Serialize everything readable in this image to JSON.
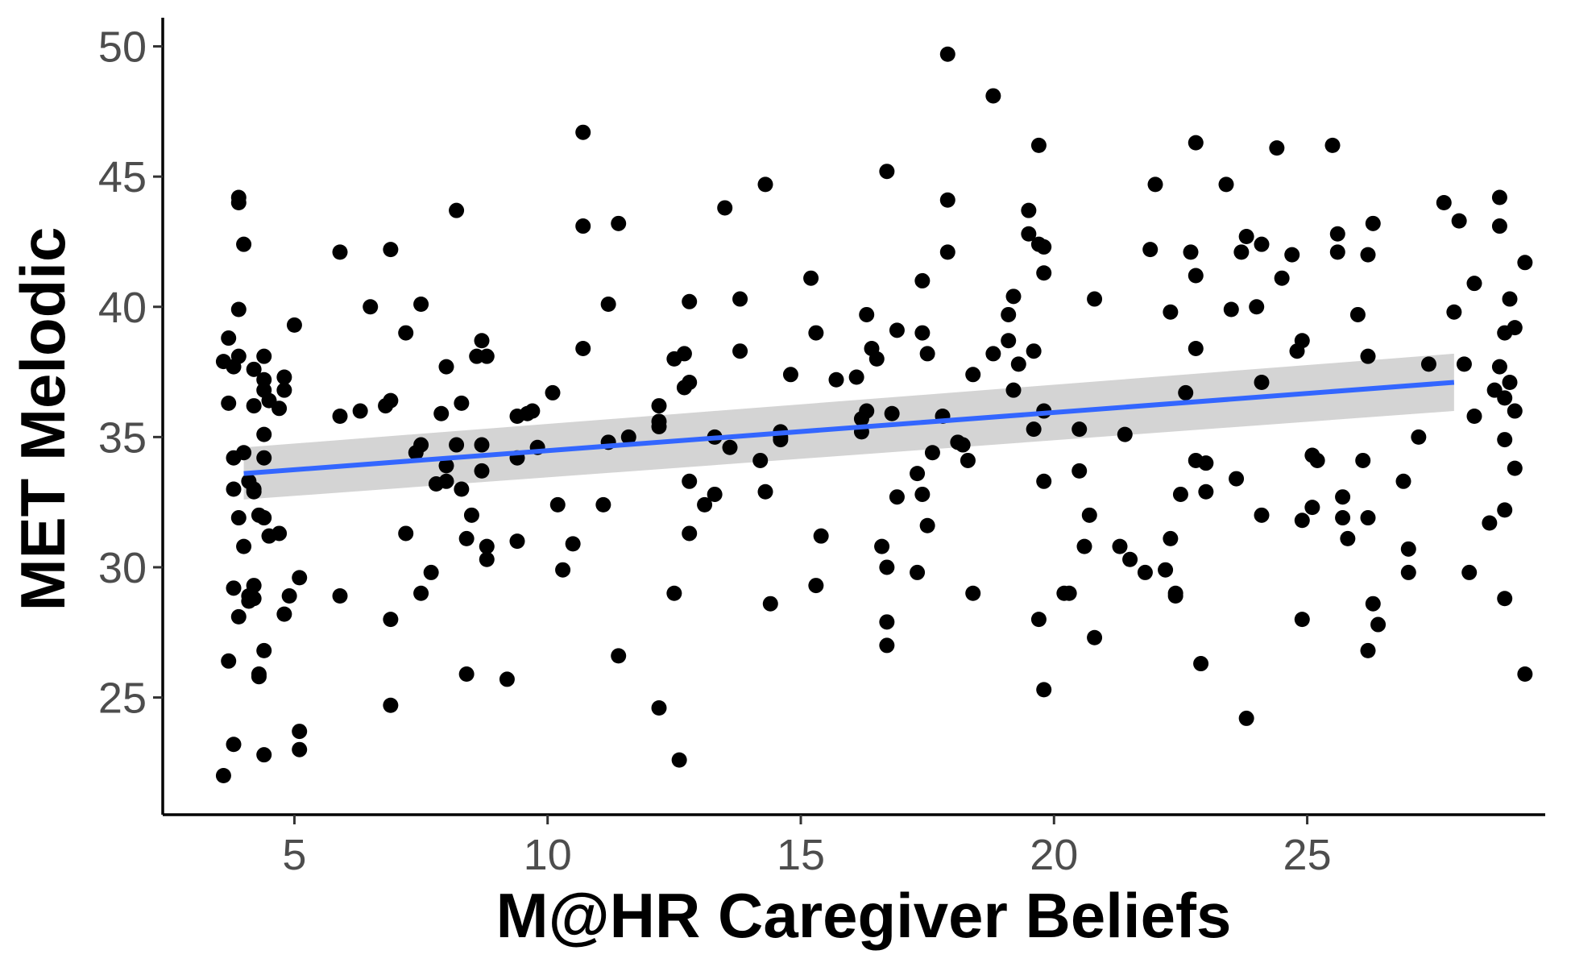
{
  "chart_data": {
    "type": "scatter",
    "title": "",
    "xlabel": "M@HR Caregiver Beliefs",
    "ylabel": "MET Melodic",
    "xlim": [
      2.4,
      29.7
    ],
    "ylim": [
      20.5,
      51.1
    ],
    "x_ticks": [
      5,
      10,
      15,
      20,
      25
    ],
    "y_ticks": [
      25,
      30,
      35,
      40,
      45,
      50
    ],
    "grid": false,
    "legend": "none",
    "colors": {
      "points": "#000000",
      "fit_line": "#3366FF",
      "ci_band": "#CCCCCC",
      "axis": "#000000",
      "tick_text": "#4D4D4D"
    },
    "fit": {
      "x_start": 4.0,
      "x_end": 27.9,
      "y_start": 33.6,
      "y_end": 37.1,
      "ci_start": [
        32.6,
        34.6
      ],
      "ci_end": [
        36.0,
        38.2
      ]
    },
    "points": [
      [
        3.6,
        22.0
      ],
      [
        3.6,
        37.9
      ],
      [
        3.7,
        38.8
      ],
      [
        3.7,
        36.3
      ],
      [
        3.7,
        26.4
      ],
      [
        3.8,
        29.2
      ],
      [
        3.8,
        33.0
      ],
      [
        3.8,
        34.2
      ],
      [
        3.8,
        37.7
      ],
      [
        3.8,
        23.2
      ],
      [
        3.9,
        39.9
      ],
      [
        3.9,
        38.1
      ],
      [
        3.9,
        44.0
      ],
      [
        3.9,
        44.2
      ],
      [
        3.9,
        31.9
      ],
      [
        3.9,
        28.1
      ],
      [
        4.0,
        34.4
      ],
      [
        4.0,
        30.8
      ],
      [
        4.0,
        42.4
      ],
      [
        4.1,
        33.3
      ],
      [
        4.1,
        28.9
      ],
      [
        4.1,
        28.7
      ],
      [
        4.2,
        37.6
      ],
      [
        4.2,
        36.2
      ],
      [
        4.2,
        33.0
      ],
      [
        4.2,
        32.9
      ],
      [
        4.2,
        29.3
      ],
      [
        4.2,
        28.8
      ],
      [
        4.3,
        32.0
      ],
      [
        4.3,
        25.9
      ],
      [
        4.3,
        25.8
      ],
      [
        4.4,
        37.2
      ],
      [
        4.4,
        36.8
      ],
      [
        4.4,
        34.2
      ],
      [
        4.4,
        31.9
      ],
      [
        4.4,
        38.1
      ],
      [
        4.4,
        35.1
      ],
      [
        4.4,
        26.8
      ],
      [
        4.4,
        22.8
      ],
      [
        4.5,
        36.4
      ],
      [
        4.5,
        31.2
      ],
      [
        4.7,
        36.1
      ],
      [
        4.7,
        31.3
      ],
      [
        4.8,
        37.3
      ],
      [
        4.8,
        36.8
      ],
      [
        4.8,
        28.2
      ],
      [
        4.9,
        28.9
      ],
      [
        5.0,
        39.3
      ],
      [
        5.1,
        29.6
      ],
      [
        5.1,
        23.7
      ],
      [
        5.1,
        23.0
      ],
      [
        5.9,
        42.1
      ],
      [
        5.9,
        35.8
      ],
      [
        5.9,
        28.9
      ],
      [
        6.3,
        36.0
      ],
      [
        6.5,
        40.0
      ],
      [
        6.8,
        36.2
      ],
      [
        6.9,
        36.4
      ],
      [
        6.9,
        42.2
      ],
      [
        6.9,
        28.0
      ],
      [
        6.9,
        24.7
      ],
      [
        7.2,
        39.0
      ],
      [
        7.2,
        31.3
      ],
      [
        7.4,
        34.4
      ],
      [
        7.5,
        40.1
      ],
      [
        7.5,
        34.7
      ],
      [
        7.5,
        29.0
      ],
      [
        7.7,
        29.8
      ],
      [
        7.8,
        33.2
      ],
      [
        7.9,
        35.9
      ],
      [
        8.0,
        33.9
      ],
      [
        8.0,
        33.3
      ],
      [
        8.0,
        37.7
      ],
      [
        8.2,
        34.7
      ],
      [
        8.2,
        43.7
      ],
      [
        8.3,
        33.0
      ],
      [
        8.3,
        36.3
      ],
      [
        8.4,
        31.1
      ],
      [
        8.4,
        25.9
      ],
      [
        8.5,
        32.0
      ],
      [
        8.6,
        38.1
      ],
      [
        8.7,
        38.7
      ],
      [
        8.8,
        38.1
      ],
      [
        8.7,
        34.7
      ],
      [
        8.7,
        33.7
      ],
      [
        8.8,
        30.8
      ],
      [
        8.8,
        30.3
      ],
      [
        9.2,
        25.7
      ],
      [
        9.4,
        35.8
      ],
      [
        9.4,
        34.2
      ],
      [
        9.4,
        31.0
      ],
      [
        9.6,
        35.9
      ],
      [
        9.7,
        36.0
      ],
      [
        9.8,
        34.6
      ],
      [
        10.1,
        36.7
      ],
      [
        10.2,
        32.4
      ],
      [
        10.3,
        29.9
      ],
      [
        10.5,
        30.9
      ],
      [
        10.7,
        46.7
      ],
      [
        10.7,
        43.1
      ],
      [
        10.7,
        38.4
      ],
      [
        11.2,
        40.1
      ],
      [
        11.2,
        34.8
      ],
      [
        11.1,
        32.4
      ],
      [
        11.4,
        43.2
      ],
      [
        11.4,
        26.6
      ],
      [
        11.6,
        35.0
      ],
      [
        12.2,
        36.2
      ],
      [
        12.2,
        35.6
      ],
      [
        12.2,
        35.4
      ],
      [
        12.2,
        24.6
      ],
      [
        12.5,
        29.0
      ],
      [
        12.5,
        38.0
      ],
      [
        12.6,
        22.6
      ],
      [
        12.7,
        38.2
      ],
      [
        12.7,
        36.9
      ],
      [
        12.8,
        37.1
      ],
      [
        12.8,
        40.2
      ],
      [
        12.8,
        33.3
      ],
      [
        12.8,
        31.3
      ],
      [
        13.1,
        32.4
      ],
      [
        13.3,
        35.0
      ],
      [
        13.3,
        32.8
      ],
      [
        13.5,
        43.8
      ],
      [
        13.6,
        34.6
      ],
      [
        13.8,
        40.3
      ],
      [
        13.8,
        38.3
      ],
      [
        14.2,
        34.1
      ],
      [
        14.3,
        44.7
      ],
      [
        14.3,
        32.9
      ],
      [
        14.4,
        28.6
      ],
      [
        14.6,
        35.2
      ],
      [
        14.6,
        35.0
      ],
      [
        14.6,
        34.9
      ],
      [
        14.8,
        37.4
      ],
      [
        15.2,
        41.1
      ],
      [
        15.3,
        39.0
      ],
      [
        15.3,
        29.3
      ],
      [
        15.4,
        31.2
      ],
      [
        15.7,
        37.2
      ],
      [
        16.1,
        37.3
      ],
      [
        16.2,
        35.7
      ],
      [
        16.2,
        35.2
      ],
      [
        16.3,
        39.7
      ],
      [
        16.3,
        36.0
      ],
      [
        16.4,
        38.4
      ],
      [
        16.5,
        38.0
      ],
      [
        16.6,
        30.8
      ],
      [
        16.7,
        45.2
      ],
      [
        16.7,
        30.0
      ],
      [
        16.7,
        27.9
      ],
      [
        16.7,
        27.0
      ],
      [
        16.9,
        39.1
      ],
      [
        16.8,
        35.9
      ],
      [
        16.9,
        32.7
      ],
      [
        17.3,
        29.8
      ],
      [
        17.3,
        33.6
      ],
      [
        17.4,
        41.0
      ],
      [
        17.4,
        39.0
      ],
      [
        17.4,
        32.8
      ],
      [
        17.5,
        38.2
      ],
      [
        17.5,
        31.6
      ],
      [
        17.6,
        34.4
      ],
      [
        17.8,
        35.8
      ],
      [
        17.9,
        49.7
      ],
      [
        17.9,
        44.1
      ],
      [
        17.9,
        42.1
      ],
      [
        18.1,
        34.8
      ],
      [
        18.2,
        34.7
      ],
      [
        18.3,
        34.1
      ],
      [
        18.4,
        37.4
      ],
      [
        18.4,
        29.0
      ],
      [
        18.8,
        48.1
      ],
      [
        18.8,
        38.2
      ],
      [
        19.1,
        39.7
      ],
      [
        19.1,
        38.7
      ],
      [
        19.2,
        40.4
      ],
      [
        19.2,
        36.8
      ],
      [
        19.3,
        37.8
      ],
      [
        19.5,
        43.7
      ],
      [
        19.5,
        42.8
      ],
      [
        19.6,
        38.3
      ],
      [
        19.6,
        35.3
      ],
      [
        19.7,
        46.2
      ],
      [
        19.7,
        42.4
      ],
      [
        19.8,
        42.3
      ],
      [
        19.8,
        41.3
      ],
      [
        19.8,
        36.0
      ],
      [
        19.8,
        33.3
      ],
      [
        19.7,
        28.0
      ],
      [
        19.8,
        25.3
      ],
      [
        20.2,
        29.0
      ],
      [
        20.3,
        29.0
      ],
      [
        20.5,
        35.3
      ],
      [
        20.5,
        33.7
      ],
      [
        20.6,
        30.8
      ],
      [
        20.7,
        32.0
      ],
      [
        20.8,
        40.3
      ],
      [
        20.8,
        27.3
      ],
      [
        21.4,
        35.1
      ],
      [
        21.3,
        30.8
      ],
      [
        21.5,
        30.3
      ],
      [
        21.8,
        29.8
      ],
      [
        21.9,
        42.2
      ],
      [
        22.0,
        44.7
      ],
      [
        22.2,
        29.9
      ],
      [
        22.3,
        39.8
      ],
      [
        22.3,
        31.1
      ],
      [
        22.4,
        29.0
      ],
      [
        22.4,
        28.9
      ],
      [
        22.5,
        32.8
      ],
      [
        22.6,
        36.7
      ],
      [
        22.7,
        42.1
      ],
      [
        22.8,
        41.2
      ],
      [
        22.8,
        38.4
      ],
      [
        22.8,
        34.1
      ],
      [
        22.8,
        46.3
      ],
      [
        22.9,
        26.3
      ],
      [
        23.0,
        34.0
      ],
      [
        23.0,
        32.9
      ],
      [
        23.4,
        44.7
      ],
      [
        23.5,
        39.9
      ],
      [
        23.6,
        33.4
      ],
      [
        23.7,
        42.1
      ],
      [
        23.8,
        42.7
      ],
      [
        23.8,
        24.2
      ],
      [
        24.0,
        40.0
      ],
      [
        24.1,
        37.1
      ],
      [
        24.1,
        32.0
      ],
      [
        24.1,
        42.4
      ],
      [
        24.4,
        46.1
      ],
      [
        24.5,
        41.1
      ],
      [
        24.7,
        42.0
      ],
      [
        24.8,
        38.3
      ],
      [
        24.9,
        38.7
      ],
      [
        24.9,
        31.8
      ],
      [
        24.9,
        28.0
      ],
      [
        25.1,
        34.3
      ],
      [
        25.1,
        32.3
      ],
      [
        25.2,
        34.1
      ],
      [
        25.5,
        46.2
      ],
      [
        25.6,
        42.8
      ],
      [
        25.6,
        42.1
      ],
      [
        25.7,
        32.7
      ],
      [
        25.7,
        31.9
      ],
      [
        25.8,
        31.1
      ],
      [
        26.0,
        39.7
      ],
      [
        26.1,
        34.1
      ],
      [
        26.2,
        42.0
      ],
      [
        26.2,
        31.9
      ],
      [
        26.2,
        38.1
      ],
      [
        26.2,
        26.8
      ],
      [
        26.3,
        43.2
      ],
      [
        26.3,
        28.6
      ],
      [
        26.4,
        27.8
      ],
      [
        26.9,
        33.3
      ],
      [
        27.0,
        30.7
      ],
      [
        27.0,
        29.8
      ],
      [
        27.2,
        35.0
      ],
      [
        27.4,
        37.8
      ],
      [
        27.7,
        44.0
      ],
      [
        27.9,
        39.8
      ],
      [
        28.0,
        43.3
      ],
      [
        28.1,
        37.8
      ],
      [
        28.3,
        40.9
      ],
      [
        28.3,
        35.8
      ],
      [
        28.2,
        29.8
      ],
      [
        28.6,
        31.7
      ],
      [
        28.8,
        44.2
      ],
      [
        28.8,
        43.1
      ],
      [
        28.9,
        39.0
      ],
      [
        28.8,
        37.7
      ],
      [
        28.9,
        36.5
      ],
      [
        28.9,
        34.9
      ],
      [
        28.9,
        32.2
      ],
      [
        28.9,
        28.8
      ],
      [
        29.0,
        40.3
      ],
      [
        29.0,
        37.1
      ],
      [
        29.1,
        39.2
      ],
      [
        29.1,
        36.0
      ],
      [
        29.1,
        33.8
      ],
      [
        29.3,
        41.7
      ],
      [
        29.3,
        25.9
      ],
      [
        28.7,
        36.8
      ]
    ]
  }
}
